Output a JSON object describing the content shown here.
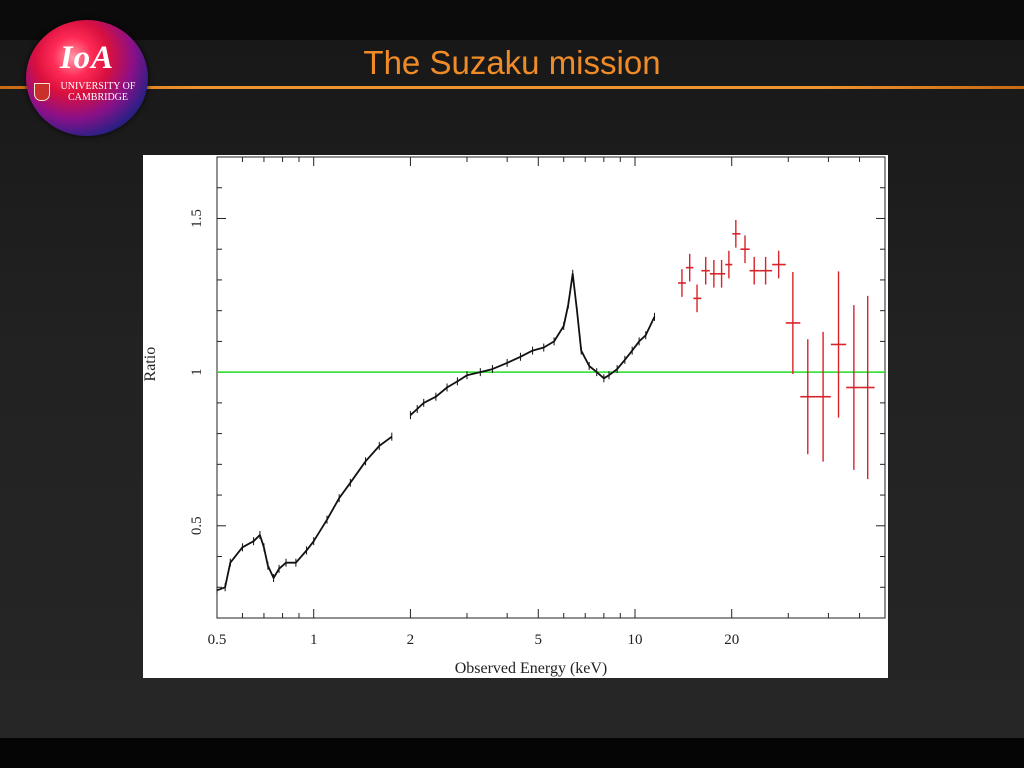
{
  "slide": {
    "title": "The Suzaku mission"
  },
  "logo": {
    "name": "IoA",
    "line1": "UNIVERSITY OF",
    "line2": "CAMBRIDGE"
  },
  "colors": {
    "title": "#f08c28",
    "rule": "#f0942e",
    "black_series": "#111111",
    "red_series": "#d8232a",
    "reference_line": "#22dd22"
  },
  "chart_data": {
    "type": "line",
    "title": "",
    "xlabel": "Observed Energy (keV)",
    "ylabel": "Ratio",
    "xscale": "log",
    "xlim": [
      0.5,
      60
    ],
    "ylim": [
      0.2,
      1.7
    ],
    "xticks": [
      0.5,
      1,
      2,
      5,
      10,
      20
    ],
    "xtick_labels": [
      "0.5",
      "1",
      "2",
      "5",
      "10",
      "20"
    ],
    "yticks": [
      0.5,
      1,
      1.5
    ],
    "ytick_labels": [
      "0.5",
      "1",
      "1.5"
    ],
    "grid": false,
    "reference_line": {
      "y": 1.0,
      "color": "#22dd22"
    },
    "series": [
      {
        "color": "#111111",
        "x": [
          0.5,
          0.53,
          0.55,
          0.6,
          0.65,
          0.68,
          0.7,
          0.72,
          0.75,
          0.78,
          0.82,
          0.88,
          0.95,
          1.0,
          1.1,
          1.2,
          1.3,
          1.45,
          1.6,
          1.75,
          2.0,
          2.1,
          2.2,
          2.4,
          2.6,
          2.8,
          3.0,
          3.3,
          3.6,
          4.0,
          4.4,
          4.8,
          5.2,
          5.6,
          6.0,
          6.2,
          6.4,
          6.6,
          6.8,
          7.2,
          7.6,
          8.0,
          8.3,
          8.8,
          9.3,
          9.8,
          10.3,
          10.8,
          11.5
        ],
        "y": [
          0.29,
          0.3,
          0.38,
          0.43,
          0.45,
          0.47,
          0.43,
          0.37,
          0.33,
          0.36,
          0.38,
          0.38,
          0.42,
          0.45,
          0.52,
          0.59,
          0.64,
          0.71,
          0.76,
          0.79,
          0.86,
          0.88,
          0.9,
          0.92,
          0.95,
          0.97,
          0.99,
          1.0,
          1.01,
          1.03,
          1.05,
          1.07,
          1.08,
          1.1,
          1.15,
          1.22,
          1.32,
          1.2,
          1.07,
          1.02,
          1.0,
          0.98,
          0.99,
          1.01,
          1.04,
          1.07,
          1.1,
          1.12,
          1.18
        ]
      },
      {
        "color": "#d8232a",
        "x": [
          14,
          14.8,
          15.6,
          16.6,
          17.6,
          18.6,
          19.6,
          20.6,
          22.0,
          23.5,
          25.5,
          28.0,
          31.0,
          34.5,
          38.5,
          43.0,
          48.0,
          53.0
        ],
        "y": [
          1.29,
          1.34,
          1.24,
          1.33,
          1.32,
          1.32,
          1.35,
          1.45,
          1.4,
          1.33,
          1.33,
          1.35,
          1.16,
          0.92,
          0.92,
          1.09,
          0.95,
          0.95
        ]
      }
    ]
  }
}
